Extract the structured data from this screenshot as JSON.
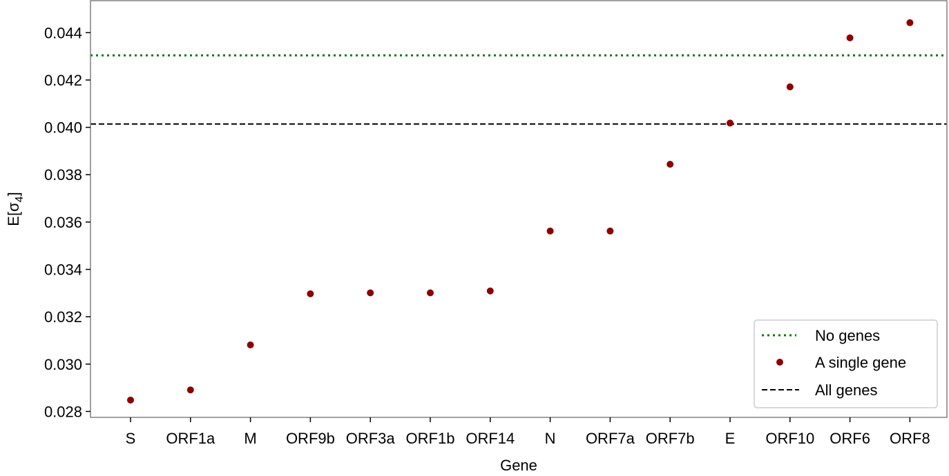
{
  "chart_data": {
    "type": "scatter",
    "xlabel": "Gene",
    "ylabel": "E[σ",
    "ylabel_sub": "4",
    "ylabel_close": "]",
    "categories": [
      "S",
      "ORF1a",
      "M",
      "ORF9b",
      "ORF3a",
      "ORF1b",
      "ORF14",
      "N",
      "ORF7a",
      "ORF7b",
      "E",
      "ORF10",
      "ORF6",
      "ORF8"
    ],
    "series": [
      {
        "name": "A single gene",
        "color": "#8b0000",
        "values": [
          0.02848,
          0.02891,
          0.03081,
          0.03297,
          0.03301,
          0.03301,
          0.03309,
          0.03562,
          0.03562,
          0.03844,
          0.04018,
          0.04171,
          0.04378,
          0.04442
        ]
      }
    ],
    "reference_lines": [
      {
        "name": "No genes",
        "value": 0.04304,
        "style": "dotted",
        "color": "#007a00"
      },
      {
        "name": "All genes",
        "value": 0.04014,
        "style": "dashed",
        "color": "#000000"
      }
    ],
    "ylim": [
      0.02775,
      0.04535
    ],
    "yticks": [
      "0.028",
      "0.030",
      "0.032",
      "0.034",
      "0.036",
      "0.038",
      "0.040",
      "0.042",
      "0.044"
    ],
    "legend": {
      "position": "bottom-right",
      "entries": [
        "No genes",
        "A single gene",
        "All genes"
      ]
    },
    "grid": false
  }
}
